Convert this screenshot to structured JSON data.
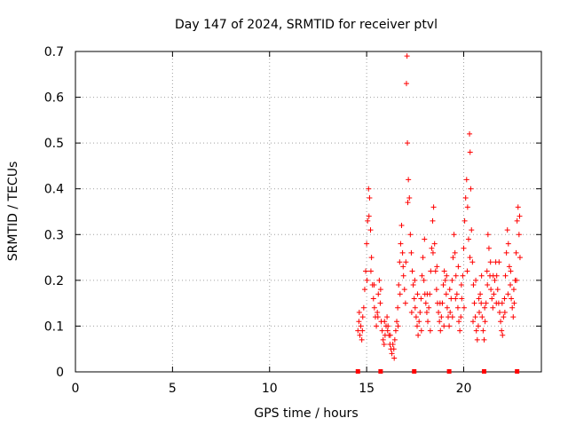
{
  "colors": {
    "series": "#ff0000",
    "grid": "#a0a0a0",
    "axis": "#000000"
  },
  "chart_data": {
    "type": "scatter",
    "title": "Day 147 of 2024, SRMTID for receiver ptvl",
    "xlabel": "GPS time / hours",
    "ylabel": "SRMTID / TECUs",
    "xlim": [
      0,
      24
    ],
    "ylim": [
      0,
      0.7
    ],
    "grid": true,
    "x_ticks": [
      0,
      5,
      10,
      15,
      20
    ],
    "x_tick_labels": [
      "0",
      "5",
      "10",
      "15",
      "20"
    ],
    "y_ticks": [
      0,
      0.1,
      0.2,
      0.3,
      0.4,
      0.5,
      0.6,
      0.7
    ],
    "y_tick_labels": [
      "0",
      "0.1",
      "0.2",
      "0.3",
      "0.4",
      "0.5",
      "0.6",
      "0.7"
    ],
    "series": [
      {
        "name": "ptvl",
        "marker": "+",
        "points": [
          [
            14.55,
            0.09
          ],
          [
            14.6,
            0.11
          ],
          [
            14.65,
            0.08
          ],
          [
            14.7,
            0.1
          ],
          [
            14.75,
            0.07
          ],
          [
            14.8,
            0.12
          ],
          [
            14.85,
            0.14
          ],
          [
            14.9,
            0.18
          ],
          [
            14.95,
            0.22
          ],
          [
            15.0,
            0.28
          ],
          [
            15.05,
            0.33
          ],
          [
            15.1,
            0.4
          ],
          [
            15.15,
            0.38
          ],
          [
            15.2,
            0.31
          ],
          [
            15.25,
            0.25
          ],
          [
            15.3,
            0.19
          ],
          [
            15.35,
            0.16
          ],
          [
            15.4,
            0.14
          ],
          [
            15.45,
            0.12
          ],
          [
            15.5,
            0.1
          ],
          [
            15.55,
            0.13
          ],
          [
            15.6,
            0.17
          ],
          [
            15.65,
            0.2
          ],
          [
            15.7,
            0.15
          ],
          [
            15.75,
            0.11
          ],
          [
            15.8,
            0.09
          ],
          [
            15.85,
            0.07
          ],
          [
            15.9,
            0.06
          ],
          [
            15.95,
            0.08
          ],
          [
            16.0,
            0.1
          ],
          [
            16.05,
            0.12
          ],
          [
            16.1,
            0.1
          ],
          [
            16.15,
            0.08
          ],
          [
            16.2,
            0.06
          ],
          [
            16.25,
            0.05
          ],
          [
            16.3,
            0.04
          ],
          [
            16.35,
            0.06
          ],
          [
            16.4,
            0.05
          ],
          [
            16.45,
            0.07
          ],
          [
            16.5,
            0.09
          ],
          [
            16.55,
            0.11
          ],
          [
            16.6,
            0.14
          ],
          [
            16.65,
            0.19
          ],
          [
            16.7,
            0.24
          ],
          [
            16.75,
            0.28
          ],
          [
            16.8,
            0.32
          ],
          [
            16.85,
            0.26
          ],
          [
            16.9,
            0.21
          ],
          [
            16.95,
            0.18
          ],
          [
            17.0,
            0.15
          ],
          [
            17.05,
            0.63
          ],
          [
            17.08,
            0.69
          ],
          [
            17.1,
            0.5
          ],
          [
            17.15,
            0.42
          ],
          [
            17.2,
            0.38
          ],
          [
            17.25,
            0.3
          ],
          [
            17.3,
            0.26
          ],
          [
            17.35,
            0.22
          ],
          [
            17.4,
            0.19
          ],
          [
            17.45,
            0.16
          ],
          [
            17.5,
            0.14
          ],
          [
            17.55,
            0.12
          ],
          [
            17.6,
            0.1
          ],
          [
            17.65,
            0.08
          ],
          [
            17.7,
            0.11
          ],
          [
            17.75,
            0.13
          ],
          [
            17.8,
            0.16
          ],
          [
            17.85,
            0.21
          ],
          [
            17.9,
            0.25
          ],
          [
            17.95,
            0.2
          ],
          [
            18.0,
            0.17
          ],
          [
            18.05,
            0.15
          ],
          [
            18.1,
            0.13
          ],
          [
            18.15,
            0.11
          ],
          [
            18.2,
            0.14
          ],
          [
            18.25,
            0.17
          ],
          [
            18.3,
            0.22
          ],
          [
            18.35,
            0.27
          ],
          [
            18.4,
            0.33
          ],
          [
            18.45,
            0.36
          ],
          [
            18.5,
            0.28
          ],
          [
            18.55,
            0.22
          ],
          [
            18.6,
            0.18
          ],
          [
            18.65,
            0.15
          ],
          [
            18.7,
            0.13
          ],
          [
            18.75,
            0.11
          ],
          [
            18.8,
            0.09
          ],
          [
            18.85,
            0.12
          ],
          [
            18.9,
            0.15
          ],
          [
            18.95,
            0.19
          ],
          [
            19.0,
            0.22
          ],
          [
            19.05,
            0.2
          ],
          [
            19.1,
            0.17
          ],
          [
            19.15,
            0.14
          ],
          [
            19.2,
            0.12
          ],
          [
            19.25,
            0.1
          ],
          [
            19.3,
            0.13
          ],
          [
            19.35,
            0.16
          ],
          [
            19.4,
            0.2
          ],
          [
            19.45,
            0.25
          ],
          [
            19.5,
            0.3
          ],
          [
            19.55,
            0.26
          ],
          [
            19.6,
            0.21
          ],
          [
            19.65,
            0.17
          ],
          [
            19.7,
            0.14
          ],
          [
            19.75,
            0.11
          ],
          [
            19.8,
            0.09
          ],
          [
            19.85,
            0.12
          ],
          [
            19.9,
            0.16
          ],
          [
            19.95,
            0.21
          ],
          [
            20.0,
            0.27
          ],
          [
            20.05,
            0.33
          ],
          [
            20.1,
            0.38
          ],
          [
            20.15,
            0.42
          ],
          [
            20.2,
            0.36
          ],
          [
            20.25,
            0.29
          ],
          [
            20.3,
            0.52
          ],
          [
            20.33,
            0.48
          ],
          [
            20.36,
            0.4
          ],
          [
            20.4,
            0.31
          ],
          [
            20.45,
            0.24
          ],
          [
            20.5,
            0.19
          ],
          [
            20.55,
            0.15
          ],
          [
            20.6,
            0.12
          ],
          [
            20.65,
            0.09
          ],
          [
            20.7,
            0.07
          ],
          [
            20.75,
            0.1
          ],
          [
            20.8,
            0.13
          ],
          [
            20.85,
            0.17
          ],
          [
            20.9,
            0.15
          ],
          [
            20.95,
            0.12
          ],
          [
            21.0,
            0.09
          ],
          [
            21.05,
            0.07
          ],
          [
            21.1,
            0.11
          ],
          [
            21.15,
            0.15
          ],
          [
            21.2,
            0.22
          ],
          [
            21.25,
            0.3
          ],
          [
            21.3,
            0.27
          ],
          [
            21.35,
            0.21
          ],
          [
            21.4,
            0.18
          ],
          [
            21.45,
            0.16
          ],
          [
            21.5,
            0.14
          ],
          [
            21.55,
            0.17
          ],
          [
            21.6,
            0.2
          ],
          [
            21.65,
            0.24
          ],
          [
            21.7,
            0.21
          ],
          [
            21.75,
            0.18
          ],
          [
            21.8,
            0.15
          ],
          [
            21.85,
            0.13
          ],
          [
            21.9,
            0.11
          ],
          [
            21.95,
            0.09
          ],
          [
            22.0,
            0.08
          ],
          [
            22.05,
            0.12
          ],
          [
            22.1,
            0.16
          ],
          [
            22.15,
            0.21
          ],
          [
            22.2,
            0.26
          ],
          [
            22.25,
            0.31
          ],
          [
            22.3,
            0.28
          ],
          [
            22.35,
            0.23
          ],
          [
            22.4,
            0.19
          ],
          [
            22.45,
            0.16
          ],
          [
            22.5,
            0.14
          ],
          [
            22.55,
            0.12
          ],
          [
            22.6,
            0.15
          ],
          [
            22.65,
            0.2
          ],
          [
            22.7,
            0.26
          ],
          [
            22.75,
            0.33
          ],
          [
            22.8,
            0.36
          ],
          [
            22.85,
            0.3
          ],
          [
            22.9,
            0.25
          ],
          [
            14.62,
            0.13
          ],
          [
            14.78,
            0.09
          ],
          [
            15.02,
            0.2
          ],
          [
            15.12,
            0.34
          ],
          [
            15.22,
            0.22
          ],
          [
            15.38,
            0.19
          ],
          [
            15.58,
            0.12
          ],
          [
            15.72,
            0.18
          ],
          [
            15.92,
            0.11
          ],
          [
            16.08,
            0.09
          ],
          [
            16.22,
            0.08
          ],
          [
            16.42,
            0.03
          ],
          [
            16.62,
            0.1
          ],
          [
            16.72,
            0.17
          ],
          [
            16.88,
            0.23
          ],
          [
            17.02,
            0.24
          ],
          [
            17.12,
            0.37
          ],
          [
            17.32,
            0.13
          ],
          [
            17.48,
            0.2
          ],
          [
            17.62,
            0.17
          ],
          [
            17.82,
            0.09
          ],
          [
            17.98,
            0.29
          ],
          [
            18.12,
            0.17
          ],
          [
            18.28,
            0.09
          ],
          [
            18.42,
            0.26
          ],
          [
            18.62,
            0.23
          ],
          [
            18.78,
            0.15
          ],
          [
            18.98,
            0.1
          ],
          [
            19.12,
            0.21
          ],
          [
            19.28,
            0.18
          ],
          [
            19.42,
            0.12
          ],
          [
            19.58,
            0.16
          ],
          [
            19.72,
            0.23
          ],
          [
            19.88,
            0.19
          ],
          [
            20.02,
            0.14
          ],
          [
            20.18,
            0.22
          ],
          [
            20.32,
            0.25
          ],
          [
            20.48,
            0.11
          ],
          [
            20.62,
            0.2
          ],
          [
            20.78,
            0.16
          ],
          [
            20.92,
            0.21
          ],
          [
            21.08,
            0.14
          ],
          [
            21.22,
            0.19
          ],
          [
            21.38,
            0.24
          ],
          [
            21.52,
            0.21
          ],
          [
            21.68,
            0.15
          ],
          [
            21.82,
            0.24
          ],
          [
            21.98,
            0.15
          ],
          [
            22.12,
            0.13
          ],
          [
            22.28,
            0.17
          ],
          [
            22.42,
            0.22
          ],
          [
            22.58,
            0.18
          ],
          [
            22.72,
            0.2
          ],
          [
            22.88,
            0.34
          ]
        ]
      }
    ],
    "x_axis_markers": [
      14.55,
      15.72,
      17.45,
      19.25,
      21.05,
      22.75
    ]
  }
}
